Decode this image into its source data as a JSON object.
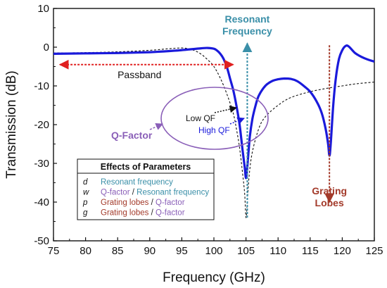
{
  "chart_data": {
    "type": "line",
    "xlabel": "Frequency (GHz)",
    "ylabel": "Transmission (dB)",
    "xlim": [
      75,
      125
    ],
    "ylim": [
      -50,
      10
    ],
    "xticks": [
      75,
      80,
      85,
      90,
      95,
      100,
      105,
      110,
      115,
      120,
      125
    ],
    "yticks": [
      10,
      0,
      -10,
      -20,
      -30,
      -40,
      -50
    ],
    "grid": false,
    "series": [
      {
        "style": "solid",
        "color": "#1a1adb",
        "x": [
          75,
          80,
          85,
          90,
          92,
          94,
          96,
          98,
          99,
          100,
          100.5,
          101,
          101.5,
          102,
          102.5,
          103,
          103.5,
          104,
          104.5,
          104.8,
          105,
          105.2,
          105.4,
          105.6,
          106,
          106.5,
          107,
          108,
          109,
          110,
          111,
          112,
          113,
          114,
          115,
          116,
          116.8,
          117.4,
          117.8,
          118,
          118.2,
          118.6,
          119,
          119.5,
          120,
          120.5,
          121,
          122,
          123,
          124,
          125
        ],
        "y": [
          -1.7,
          -1.6,
          -1.5,
          -1.3,
          -1.1,
          -0.9,
          -0.6,
          -0.3,
          -0.2,
          -0.4,
          -0.9,
          -1.7,
          -3,
          -5,
          -8,
          -11,
          -15,
          -20,
          -27,
          -31,
          -33.8,
          -31,
          -27,
          -23,
          -18.5,
          -15,
          -12.5,
          -10,
          -8.8,
          -8.3,
          -8.1,
          -8.2,
          -8.8,
          -10,
          -11.5,
          -14,
          -17,
          -21,
          -25,
          -28,
          -25,
          -15,
          -8,
          -3,
          -0.8,
          0.3,
          0.2,
          -1.5,
          -2.5,
          -3.2,
          -3.7
        ]
      },
      {
        "style": "dashed",
        "color": "#111111",
        "x": [
          75,
          80,
          85,
          90,
          93,
          95,
          96,
          97,
          98,
          99,
          100,
          101,
          102,
          103,
          103.5,
          104,
          104.5,
          104.8,
          105,
          105.2,
          105.5,
          106,
          107,
          108,
          110,
          112,
          115,
          118,
          120,
          122,
          125
        ],
        "y": [
          -1.5,
          -1.4,
          -1.2,
          -0.8,
          -0.4,
          -0.2,
          -0.4,
          -0.9,
          -1.8,
          -3.2,
          -5,
          -8,
          -12,
          -17,
          -21,
          -26,
          -33,
          -38,
          -44,
          -40,
          -33,
          -27,
          -21,
          -18,
          -15,
          -13,
          -11.5,
          -10.5,
          -10,
          -9.5,
          -9
        ]
      }
    ],
    "annotations": {
      "resonant": {
        "text": [
          "Resonant",
          "Frequency"
        ],
        "color": "#3a8fa8",
        "x": 105.2,
        "y_from": -44,
        "y_to": 1
      },
      "grating": {
        "text": [
          "Grating",
          "Lobes"
        ],
        "color": "#a33a2a",
        "x": 118,
        "y_from": 0.5,
        "y_to": -40
      },
      "passband": {
        "text": "Passband",
        "color": "#e02020",
        "x_from": 76,
        "x_to": 103,
        "y": -4.5
      },
      "qfactor": {
        "text": "Q-Factor",
        "color": "#8a5fb8"
      },
      "low_qf": {
        "text": "Low QF"
      },
      "high_qf": {
        "text": "High QF",
        "color": "#1a1adb"
      }
    },
    "table": {
      "title": "Effects of Parameters",
      "rows": [
        {
          "param": "d",
          "parts": [
            {
              "text": "Resonant frequency",
              "color": "#3a8fa8"
            }
          ]
        },
        {
          "param": "w",
          "parts": [
            {
              "text": "Q-factor",
              "color": "#8a5fb8"
            },
            {
              "text": " / ",
              "color": "#222222"
            },
            {
              "text": "Resonant frequency",
              "color": "#3a8fa8"
            }
          ]
        },
        {
          "param": "p",
          "parts": [
            {
              "text": "Grating lobes",
              "color": "#a33a2a"
            },
            {
              "text": " / ",
              "color": "#222222"
            },
            {
              "text": "Q-factor",
              "color": "#8a5fb8"
            }
          ]
        },
        {
          "param": "g",
          "parts": [
            {
              "text": "Grating lobes",
              "color": "#a33a2a"
            },
            {
              "text": " / ",
              "color": "#222222"
            },
            {
              "text": "Q-factor",
              "color": "#8a5fb8"
            }
          ]
        }
      ]
    }
  }
}
